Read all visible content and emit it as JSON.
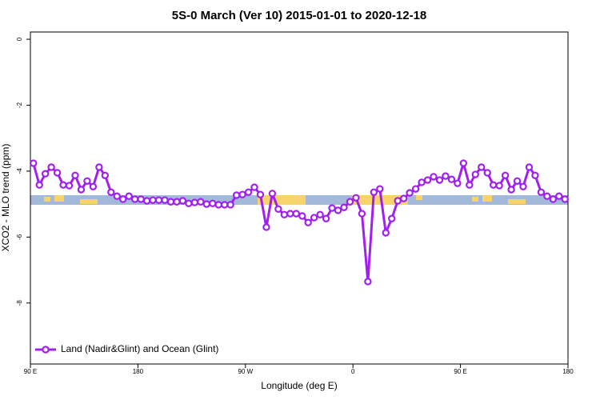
{
  "chart_data": {
    "type": "line",
    "title": "5S-0 March (Ver 10)   2015-01-01 to 2020-12-18",
    "xlabel": "Longitude (deg E)",
    "ylabel": "XCO2 - MLO trend (ppm)",
    "xlim": [
      90,
      540
    ],
    "ylim": [
      -9.85,
      0.22
    ],
    "xticks": [
      {
        "value": 90,
        "label": "90 E"
      },
      180,
      {
        "value": 270,
        "label": "90 W"
      },
      {
        "value": 360,
        "label": "0"
      },
      {
        "value": 450,
        "label": "90 E"
      },
      {
        "value": 540,
        "label": "180"
      }
    ],
    "yticks": [
      0,
      -2,
      -4,
      -6,
      -8
    ],
    "legend": "bottom-left",
    "x": [
      92.5,
      97.5,
      102.5,
      107.5,
      112.5,
      117.5,
      122.5,
      127.5,
      132.5,
      137.5,
      142.5,
      147.5,
      152.5,
      157.5,
      162.5,
      167.5,
      172.5,
      177.5,
      182.5,
      187.5,
      192.5,
      197.5,
      202.5,
      207.5,
      212.5,
      217.5,
      222.5,
      227.5,
      232.5,
      237.5,
      242.5,
      247.5,
      252.5,
      257.5,
      262.5,
      267.5,
      272.5,
      277.5,
      282.5,
      287.5,
      292.5,
      297.5,
      302.5,
      307.5,
      312.5,
      317.5,
      322.5,
      327.5,
      332.5,
      337.5,
      342.5,
      347.5,
      352.5,
      357.5,
      362.5,
      367.5,
      372.5,
      377.5,
      382.5,
      387.5,
      392.5,
      397.5,
      402.5,
      407.5,
      412.5,
      417.5,
      422.5,
      427.5,
      432.5,
      437.5,
      442.5,
      447.5,
      452.5,
      457.5,
      462.5,
      467.5,
      472.5,
      477.5,
      482.5,
      487.5,
      492.5,
      497.5,
      502.5,
      507.5,
      512.5,
      517.5,
      522.5,
      527.5,
      532.5,
      537.5
    ],
    "series": [
      {
        "name": "Land (Nadir&Glint) and Ocean (Glint)",
        "color": "#a020f0",
        "values": [
          -3.76,
          -4.42,
          -4.08,
          -3.88,
          -4.05,
          -4.42,
          -4.44,
          -4.13,
          -4.56,
          -4.3,
          -4.47,
          -3.88,
          -4.13,
          -4.64,
          -4.76,
          -4.85,
          -4.76,
          -4.85,
          -4.85,
          -4.9,
          -4.88,
          -4.88,
          -4.88,
          -4.93,
          -4.93,
          -4.9,
          -4.98,
          -4.95,
          -4.93,
          -5.0,
          -4.98,
          -5.02,
          -5.02,
          -5.02,
          -4.73,
          -4.71,
          -4.64,
          -4.49,
          -4.71,
          -5.7,
          -4.68,
          -5.15,
          -5.32,
          -5.29,
          -5.29,
          -5.36,
          -5.56,
          -5.41,
          -5.32,
          -5.44,
          -5.12,
          -5.19,
          -5.1,
          -4.93,
          -4.81,
          -5.29,
          -7.35,
          -4.64,
          -4.54,
          -5.87,
          -5.44,
          -4.9,
          -4.83,
          -4.66,
          -4.54,
          -4.34,
          -4.27,
          -4.17,
          -4.27,
          -4.15,
          -4.25,
          -4.37,
          -3.76,
          -4.42,
          -4.1,
          -3.88,
          -4.05,
          -4.42,
          -4.44,
          -4.13,
          -4.56,
          -4.3,
          -4.47,
          -3.88,
          -4.13,
          -4.64,
          -4.76,
          -4.85,
          -4.76,
          -4.85
        ]
      }
    ]
  }
}
